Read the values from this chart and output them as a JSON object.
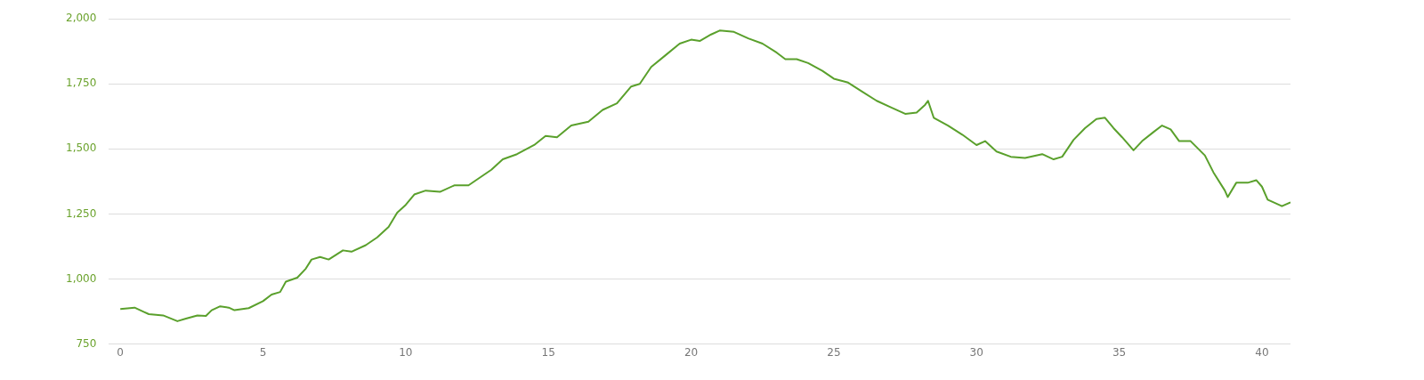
{
  "chart_data": {
    "type": "line",
    "xlim": [
      -0.4,
      41
    ],
    "xticks": [
      0,
      5,
      10,
      15,
      20,
      25,
      30,
      35,
      40
    ],
    "ylim": [
      750,
      2000
    ],
    "yticks": [
      {
        "value": 750,
        "label": "750"
      },
      {
        "value": 1000,
        "label": "1,000"
      },
      {
        "value": 1250,
        "label": "1,250"
      },
      {
        "value": 1500,
        "label": "1,500"
      },
      {
        "value": 1750,
        "label": "1,750"
      },
      {
        "value": 2000,
        "label": "2,000"
      }
    ],
    "grid": "y",
    "legend": false,
    "marker": "none",
    "line_style": "solid",
    "series": [
      {
        "color": "#5aa02c",
        "x": [
          0,
          0.5,
          0.8,
          1,
          1.5,
          2,
          2.3,
          2.7,
          3,
          3.2,
          3.5,
          3.8,
          4,
          4.5,
          5,
          5.3,
          5.6,
          5.8,
          6.2,
          6.5,
          6.7,
          7,
          7.3,
          7.8,
          8.1,
          8.6,
          9,
          9.4,
          9.7,
          10,
          10.3,
          10.7,
          11.2,
          11.7,
          12.2,
          12.6,
          13,
          13.4,
          13.9,
          14.5,
          14.9,
          15.3,
          15.8,
          16.4,
          16.9,
          17.4,
          17.9,
          18.2,
          18.6,
          19.1,
          19.6,
          20,
          20.3,
          20.7,
          21,
          21.5,
          22,
          22.5,
          23,
          23.3,
          23.7,
          24.1,
          24.6,
          25,
          25.5,
          26,
          26.5,
          27,
          27.5,
          27.9,
          28.2,
          28.3,
          28.5,
          29,
          29.5,
          30,
          30.3,
          30.7,
          31.2,
          31.7,
          32.3,
          32.7,
          33,
          33.4,
          33.8,
          34.2,
          34.5,
          34.8,
          35.1,
          35.5,
          35.8,
          36.2,
          36.5,
          36.8,
          37.1,
          37.5,
          38,
          38.3,
          38.7,
          38.8,
          39.1,
          39.5,
          39.8,
          40,
          40.2,
          40.7,
          41
        ],
        "values": [
          885,
          890,
          875,
          865,
          860,
          838,
          848,
          860,
          858,
          880,
          895,
          890,
          880,
          888,
          915,
          940,
          950,
          990,
          1005,
          1040,
          1075,
          1085,
          1075,
          1110,
          1105,
          1130,
          1160,
          1200,
          1255,
          1285,
          1325,
          1340,
          1335,
          1360,
          1360,
          1390,
          1420,
          1460,
          1480,
          1515,
          1550,
          1545,
          1590,
          1605,
          1650,
          1675,
          1740,
          1750,
          1815,
          1860,
          1905,
          1920,
          1915,
          1940,
          1955,
          1950,
          1925,
          1905,
          1870,
          1845,
          1845,
          1830,
          1800,
          1770,
          1755,
          1720,
          1685,
          1660,
          1635,
          1640,
          1670,
          1685,
          1620,
          1590,
          1555,
          1515,
          1530,
          1490,
          1470,
          1465,
          1480,
          1460,
          1470,
          1535,
          1580,
          1615,
          1620,
          1580,
          1545,
          1495,
          1530,
          1565,
          1590,
          1575,
          1530,
          1530,
          1475,
          1410,
          1340,
          1315,
          1370,
          1370,
          1380,
          1355,
          1305,
          1280,
          1295
        ]
      }
    ]
  }
}
